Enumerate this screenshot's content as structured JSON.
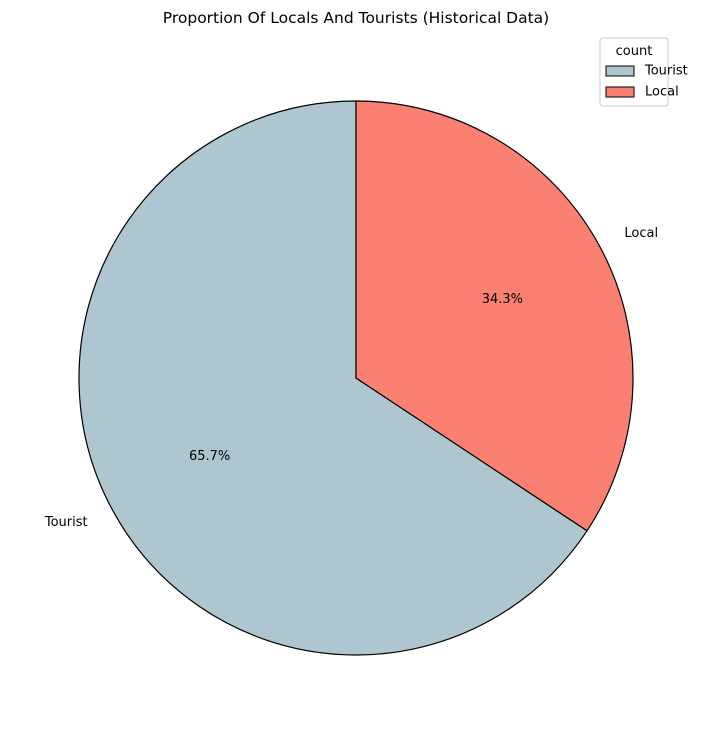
{
  "chart_data": {
    "type": "pie",
    "title": "Proportion Of Locals And Tourists (Historical Data)",
    "slices": [
      {
        "label": "Tourist",
        "value": 65.7,
        "pct_label": "65.7%",
        "color": "#aec6cf"
      },
      {
        "label": "Local",
        "value": 34.3,
        "pct_label": "34.3%",
        "color": "#fa8072"
      }
    ],
    "start_angle_deg": 90,
    "direction": "counterclockwise",
    "edge_color": "#000000",
    "legend": {
      "title": "count",
      "placement": "top-right",
      "entries": [
        "Tourist",
        "Local"
      ]
    }
  }
}
